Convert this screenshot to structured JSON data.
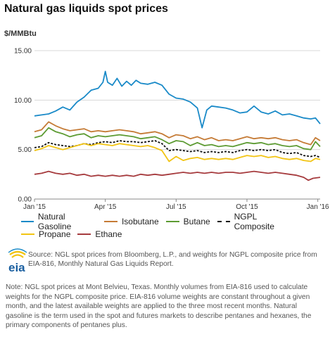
{
  "header": {
    "title": "Natural gas liquids spot prices",
    "unit": "$/MMBtu"
  },
  "chart_data": {
    "type": "line",
    "title": "Natural gas liquids spot prices",
    "ylabel": "$/MMBtu",
    "ylim": [
      0,
      15
    ],
    "y_ticks": [
      "0.00",
      "5.00",
      "10.00",
      "15.00"
    ],
    "x_ticks": [
      "Jan '15",
      "Apr '15",
      "Jul '15",
      "Oct '15",
      "Jan '16"
    ],
    "x_tick_positions_months": [
      0,
      3,
      6,
      9,
      12
    ],
    "x_unit": "months since Jan '15",
    "grid": true,
    "legend_position": "bottom",
    "series": [
      {
        "name": "Natural Gasoline",
        "color": "#1a8ac8",
        "style": "solid",
        "points": [
          [
            0,
            8.4
          ],
          [
            0.3,
            8.5
          ],
          [
            0.6,
            8.6
          ],
          [
            0.9,
            8.9
          ],
          [
            1.2,
            9.3
          ],
          [
            1.5,
            9.0
          ],
          [
            1.8,
            9.8
          ],
          [
            2.1,
            10.3
          ],
          [
            2.4,
            11.0
          ],
          [
            2.7,
            11.2
          ],
          [
            2.9,
            11.8
          ],
          [
            3.0,
            12.9
          ],
          [
            3.1,
            11.8
          ],
          [
            3.3,
            11.5
          ],
          [
            3.5,
            12.2
          ],
          [
            3.7,
            11.4
          ],
          [
            3.9,
            11.9
          ],
          [
            4.1,
            11.5
          ],
          [
            4.3,
            12.0
          ],
          [
            4.5,
            11.7
          ],
          [
            4.8,
            11.6
          ],
          [
            5.1,
            11.8
          ],
          [
            5.4,
            11.5
          ],
          [
            5.7,
            10.6
          ],
          [
            6.0,
            10.2
          ],
          [
            6.3,
            10.1
          ],
          [
            6.6,
            9.8
          ],
          [
            6.9,
            9.2
          ],
          [
            7.1,
            7.2
          ],
          [
            7.3,
            9.0
          ],
          [
            7.5,
            9.4
          ],
          [
            7.8,
            9.3
          ],
          [
            8.1,
            9.2
          ],
          [
            8.4,
            9.0
          ],
          [
            8.7,
            8.7
          ],
          [
            9.0,
            8.8
          ],
          [
            9.3,
            9.4
          ],
          [
            9.6,
            8.8
          ],
          [
            9.9,
            8.6
          ],
          [
            10.2,
            8.9
          ],
          [
            10.5,
            8.5
          ],
          [
            10.8,
            8.6
          ],
          [
            11.1,
            8.4
          ],
          [
            11.4,
            8.2
          ],
          [
            11.7,
            8.1
          ],
          [
            11.9,
            8.2
          ],
          [
            12.1,
            7.6
          ]
        ]
      },
      {
        "name": "Isobutane",
        "color": "#c57b36",
        "style": "solid",
        "points": [
          [
            0,
            6.8
          ],
          [
            0.3,
            7.0
          ],
          [
            0.6,
            7.8
          ],
          [
            0.9,
            7.4
          ],
          [
            1.2,
            7.1
          ],
          [
            1.5,
            6.9
          ],
          [
            1.8,
            7.0
          ],
          [
            2.1,
            7.1
          ],
          [
            2.4,
            6.8
          ],
          [
            2.7,
            6.9
          ],
          [
            3.0,
            6.8
          ],
          [
            3.3,
            6.9
          ],
          [
            3.6,
            7.0
          ],
          [
            3.9,
            6.9
          ],
          [
            4.2,
            6.8
          ],
          [
            4.5,
            6.6
          ],
          [
            4.8,
            6.7
          ],
          [
            5.1,
            6.8
          ],
          [
            5.4,
            6.6
          ],
          [
            5.7,
            6.2
          ],
          [
            6.0,
            6.5
          ],
          [
            6.3,
            6.4
          ],
          [
            6.6,
            6.1
          ],
          [
            6.9,
            6.3
          ],
          [
            7.2,
            6.0
          ],
          [
            7.5,
            6.2
          ],
          [
            7.8,
            5.9
          ],
          [
            8.1,
            6.0
          ],
          [
            8.4,
            5.9
          ],
          [
            8.7,
            6.1
          ],
          [
            9.0,
            6.3
          ],
          [
            9.3,
            6.1
          ],
          [
            9.6,
            6.2
          ],
          [
            9.9,
            6.1
          ],
          [
            10.2,
            6.2
          ],
          [
            10.5,
            6.0
          ],
          [
            10.8,
            5.9
          ],
          [
            11.1,
            6.0
          ],
          [
            11.4,
            5.7
          ],
          [
            11.7,
            5.5
          ],
          [
            11.9,
            6.2
          ],
          [
            12.1,
            5.9
          ]
        ]
      },
      {
        "name": "Butane",
        "color": "#5d9b33",
        "style": "solid",
        "points": [
          [
            0,
            6.2
          ],
          [
            0.3,
            6.4
          ],
          [
            0.6,
            7.2
          ],
          [
            0.9,
            6.8
          ],
          [
            1.2,
            6.6
          ],
          [
            1.5,
            6.3
          ],
          [
            1.8,
            6.5
          ],
          [
            2.1,
            6.6
          ],
          [
            2.4,
            6.2
          ],
          [
            2.7,
            6.4
          ],
          [
            3.0,
            6.3
          ],
          [
            3.3,
            6.4
          ],
          [
            3.6,
            6.5
          ],
          [
            3.9,
            6.4
          ],
          [
            4.2,
            6.3
          ],
          [
            4.5,
            6.1
          ],
          [
            4.8,
            6.2
          ],
          [
            5.1,
            6.3
          ],
          [
            5.4,
            6.0
          ],
          [
            5.7,
            5.6
          ],
          [
            6.0,
            5.9
          ],
          [
            6.3,
            5.8
          ],
          [
            6.6,
            5.4
          ],
          [
            6.9,
            5.7
          ],
          [
            7.2,
            5.4
          ],
          [
            7.5,
            5.5
          ],
          [
            7.8,
            5.3
          ],
          [
            8.1,
            5.4
          ],
          [
            8.4,
            5.3
          ],
          [
            8.7,
            5.5
          ],
          [
            9.0,
            5.7
          ],
          [
            9.3,
            5.6
          ],
          [
            9.6,
            5.7
          ],
          [
            9.9,
            5.5
          ],
          [
            10.2,
            5.6
          ],
          [
            10.5,
            5.4
          ],
          [
            10.8,
            5.3
          ],
          [
            11.1,
            5.4
          ],
          [
            11.4,
            5.1
          ],
          [
            11.7,
            5.0
          ],
          [
            11.9,
            5.8
          ],
          [
            12.1,
            5.3
          ]
        ]
      },
      {
        "name": "NGPL Composite",
        "color": "#111111",
        "style": "dashed",
        "points": [
          [
            0,
            5.2
          ],
          [
            0.3,
            5.3
          ],
          [
            0.6,
            5.7
          ],
          [
            0.9,
            5.5
          ],
          [
            1.2,
            5.4
          ],
          [
            1.5,
            5.3
          ],
          [
            1.8,
            5.4
          ],
          [
            2.1,
            5.6
          ],
          [
            2.4,
            5.5
          ],
          [
            2.7,
            5.7
          ],
          [
            3.0,
            5.8
          ],
          [
            3.3,
            5.7
          ],
          [
            3.6,
            5.9
          ],
          [
            3.9,
            5.8
          ],
          [
            4.2,
            5.8
          ],
          [
            4.5,
            5.7
          ],
          [
            4.8,
            5.8
          ],
          [
            5.1,
            5.9
          ],
          [
            5.4,
            5.6
          ],
          [
            5.7,
            4.9
          ],
          [
            6.0,
            5.0
          ],
          [
            6.3,
            4.9
          ],
          [
            6.6,
            4.8
          ],
          [
            6.9,
            4.9
          ],
          [
            7.2,
            4.7
          ],
          [
            7.5,
            4.8
          ],
          [
            7.8,
            4.7
          ],
          [
            8.1,
            4.8
          ],
          [
            8.4,
            4.7
          ],
          [
            8.7,
            4.9
          ],
          [
            9.0,
            5.0
          ],
          [
            9.3,
            4.9
          ],
          [
            9.6,
            5.0
          ],
          [
            9.9,
            4.9
          ],
          [
            10.2,
            5.0
          ],
          [
            10.5,
            4.7
          ],
          [
            10.8,
            4.6
          ],
          [
            11.1,
            4.7
          ],
          [
            11.4,
            4.4
          ],
          [
            11.7,
            4.3
          ],
          [
            11.9,
            4.4
          ],
          [
            12.1,
            4.2
          ]
        ]
      },
      {
        "name": "Propane",
        "color": "#f2c413",
        "style": "solid",
        "points": [
          [
            0,
            4.9
          ],
          [
            0.3,
            5.1
          ],
          [
            0.6,
            5.4
          ],
          [
            0.9,
            5.2
          ],
          [
            1.2,
            5.0
          ],
          [
            1.5,
            5.2
          ],
          [
            1.8,
            5.4
          ],
          [
            2.1,
            5.6
          ],
          [
            2.4,
            5.4
          ],
          [
            2.7,
            5.6
          ],
          [
            3.0,
            5.5
          ],
          [
            3.3,
            5.4
          ],
          [
            3.6,
            5.6
          ],
          [
            3.9,
            5.5
          ],
          [
            4.2,
            5.4
          ],
          [
            4.5,
            5.3
          ],
          [
            4.8,
            5.4
          ],
          [
            5.1,
            5.2
          ],
          [
            5.4,
            4.9
          ],
          [
            5.7,
            3.8
          ],
          [
            6.0,
            4.3
          ],
          [
            6.3,
            3.9
          ],
          [
            6.6,
            4.1
          ],
          [
            6.9,
            4.2
          ],
          [
            7.2,
            4.0
          ],
          [
            7.5,
            4.1
          ],
          [
            7.8,
            4.0
          ],
          [
            8.1,
            4.1
          ],
          [
            8.4,
            4.0
          ],
          [
            8.7,
            4.2
          ],
          [
            9.0,
            4.4
          ],
          [
            9.3,
            4.3
          ],
          [
            9.6,
            4.4
          ],
          [
            9.9,
            4.2
          ],
          [
            10.2,
            4.3
          ],
          [
            10.5,
            4.1
          ],
          [
            10.8,
            4.0
          ],
          [
            11.1,
            4.1
          ],
          [
            11.4,
            3.9
          ],
          [
            11.7,
            3.8
          ],
          [
            11.9,
            4.1
          ],
          [
            12.1,
            4.0
          ]
        ]
      },
      {
        "name": "Ethane",
        "color": "#a63b3e",
        "style": "solid",
        "points": [
          [
            0,
            2.5
          ],
          [
            0.3,
            2.6
          ],
          [
            0.6,
            2.8
          ],
          [
            0.9,
            2.6
          ],
          [
            1.2,
            2.5
          ],
          [
            1.5,
            2.6
          ],
          [
            1.8,
            2.4
          ],
          [
            2.1,
            2.5
          ],
          [
            2.4,
            2.3
          ],
          [
            2.7,
            2.4
          ],
          [
            3.0,
            2.3
          ],
          [
            3.3,
            2.4
          ],
          [
            3.6,
            2.3
          ],
          [
            3.9,
            2.4
          ],
          [
            4.2,
            2.3
          ],
          [
            4.5,
            2.5
          ],
          [
            4.8,
            2.4
          ],
          [
            5.1,
            2.5
          ],
          [
            5.4,
            2.4
          ],
          [
            5.7,
            2.5
          ],
          [
            6.0,
            2.6
          ],
          [
            6.3,
            2.7
          ],
          [
            6.6,
            2.6
          ],
          [
            6.9,
            2.7
          ],
          [
            7.2,
            2.6
          ],
          [
            7.5,
            2.7
          ],
          [
            7.8,
            2.6
          ],
          [
            8.1,
            2.7
          ],
          [
            8.4,
            2.7
          ],
          [
            8.7,
            2.6
          ],
          [
            9.0,
            2.7
          ],
          [
            9.3,
            2.8
          ],
          [
            9.6,
            2.7
          ],
          [
            9.9,
            2.6
          ],
          [
            10.2,
            2.7
          ],
          [
            10.5,
            2.6
          ],
          [
            10.8,
            2.5
          ],
          [
            11.1,
            2.4
          ],
          [
            11.4,
            2.2
          ],
          [
            11.6,
            1.9
          ],
          [
            11.8,
            2.1
          ],
          [
            12.1,
            2.2
          ]
        ]
      }
    ]
  },
  "legend": {
    "rows": [
      [
        {
          "label": "Natural Gasoline",
          "color": "#1a8ac8",
          "style": "solid"
        },
        {
          "label": "Isobutane",
          "color": "#c57b36",
          "style": "solid"
        },
        {
          "label": "Butane",
          "color": "#5d9b33",
          "style": "solid"
        },
        {
          "label": "NGPL Composite",
          "color": "#111111",
          "style": "dashed"
        }
      ],
      [
        {
          "label": "Propane",
          "color": "#f2c413",
          "style": "solid"
        },
        {
          "label": "Ethane",
          "color": "#a63b3e",
          "style": "solid"
        }
      ]
    ]
  },
  "source": {
    "logo_text": "eia",
    "text": "Source: NGL spot prices from Bloomberg, L.P., and weights for NGPL composite price from EIA-816, Monthly Natural Gas Liquids Report."
  },
  "note": "Note: NGL spot prices at Mont Belvieu, Texas. Monthly volumes from EIA-816 used to calculate weights for the NGPL composite price. EIA-816 volume weights are constant throughout a given month, and the latest available weights are applied to the three most recent months. Natural gasoline is the term used in the spot and futures markets to describe pentanes and hexanes, the primary components of pentanes plus."
}
